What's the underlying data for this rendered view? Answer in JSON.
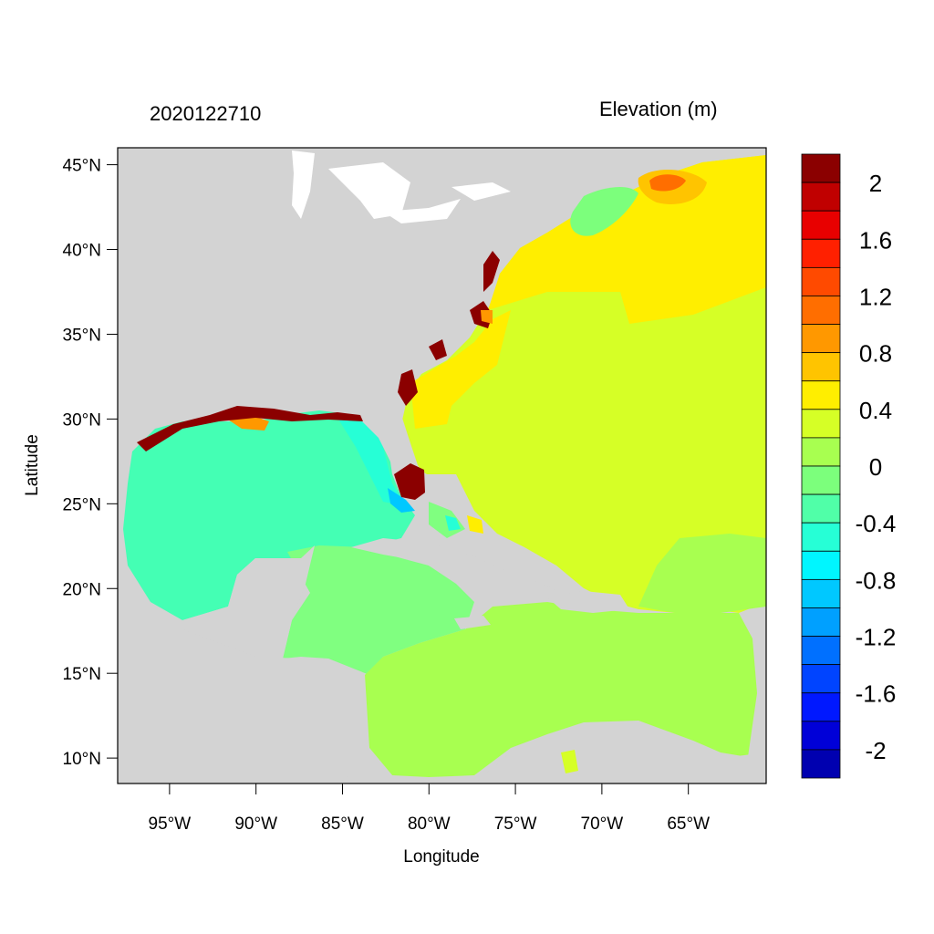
{
  "titles": {
    "left": "2020122710",
    "right": "Elevation (m)"
  },
  "axes": {
    "xlabel": "Longitude",
    "ylabel": "Latitude",
    "lon_range": [
      -98,
      -60.5
    ],
    "lat_range": [
      8.5,
      46
    ],
    "x_ticks": [
      "95°W",
      "90°W",
      "85°W",
      "80°W",
      "75°W",
      "70°W",
      "65°W"
    ],
    "x_tick_values": [
      -95,
      -90,
      -85,
      -80,
      -75,
      -70,
      -65
    ],
    "y_ticks": [
      "45°N",
      "40°N",
      "35°N",
      "30°N",
      "25°N",
      "20°N",
      "15°N",
      "10°N"
    ],
    "y_tick_values": [
      45,
      40,
      35,
      30,
      25,
      20,
      15,
      10
    ]
  },
  "colorbar": {
    "labels": [
      "2",
      "1.6",
      "1.2",
      "0.8",
      "0.4",
      "0",
      "-0.4",
      "-0.8",
      "-1.2",
      "-1.6",
      "-2"
    ],
    "colors_top_to_bottom": [
      "#8b0000",
      "#c00000",
      "#e80000",
      "#ff2000",
      "#ff4a00",
      "#ff6e00",
      "#ff9800",
      "#ffc400",
      "#ffee00",
      "#d6ff26",
      "#a8ff50",
      "#7cff7c",
      "#50ffa8",
      "#26ffd6",
      "#00f6ff",
      "#00c8ff",
      "#00a0ff",
      "#0070ff",
      "#0044ff",
      "#0018ff",
      "#0000d8",
      "#0000b0"
    ]
  },
  "map_colors": {
    "land": "#d3d3d3",
    "gulf": "#44ffb4",
    "caribbean": "#80ff80",
    "caribbean_south": "#a8ff50",
    "atlantic": "#d6ff26",
    "atlantic_north": "#ffee00",
    "florida_surge": "#8b0000"
  }
}
